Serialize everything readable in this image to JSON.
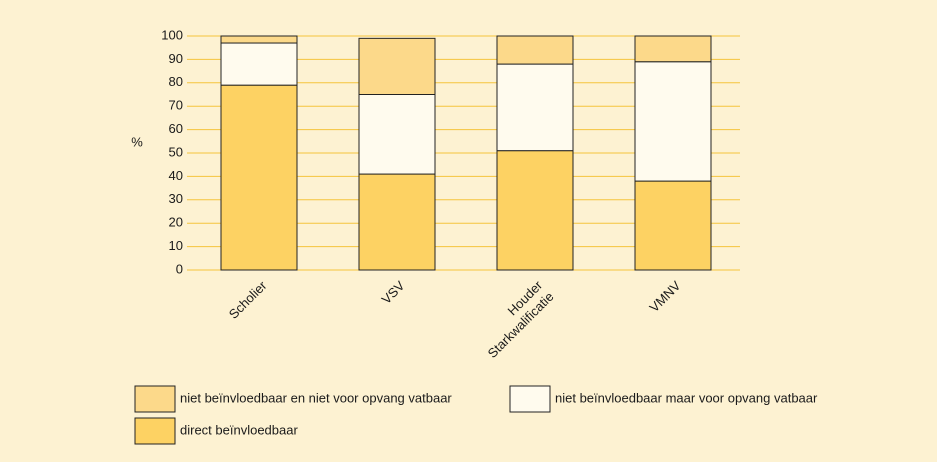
{
  "chart_data": {
    "type": "stacked_bar",
    "categories": [
      "Scholier",
      "VSV",
      "Houder Starkwalificatie",
      "VMNV"
    ],
    "series": [
      {
        "name": "direct beïnvloedbaar",
        "color": "#fdd263",
        "values": [
          79,
          41,
          51,
          38
        ]
      },
      {
        "name": "niet beïnvloedbaar maar voor opvang vatbaar",
        "color": "#fffbee",
        "values": [
          18,
          34,
          37,
          51
        ]
      },
      {
        "name": "niet beïnvloedbaar en niet voor opvang vatbaar",
        "color": "#fcd98a",
        "values": [
          3,
          24,
          12,
          11
        ]
      }
    ],
    "y_label": "%",
    "ylim": [
      0,
      100
    ],
    "yticks": [
      0,
      10,
      20,
      30,
      40,
      50,
      60,
      70,
      80,
      90,
      100
    ],
    "grid": true
  }
}
